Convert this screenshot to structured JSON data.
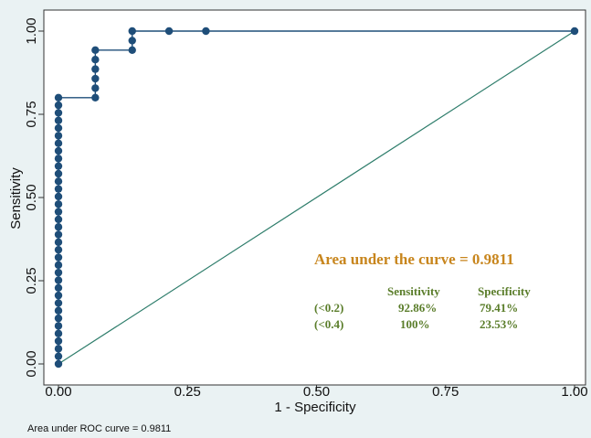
{
  "chart_data": {
    "type": "line",
    "title": "",
    "xlabel": "1 - Specificity",
    "ylabel": "Sensitivity",
    "xlim": [
      0,
      1
    ],
    "ylim": [
      0,
      1
    ],
    "x_ticks": [
      "0.00",
      "0.25",
      "0.50",
      "0.75",
      "1.00"
    ],
    "y_ticks": [
      "0.00",
      "0.25",
      "0.50",
      "0.75",
      "1.00"
    ],
    "grid": false,
    "legend": "none",
    "colors": {
      "roc": "#1f4e79",
      "reference": "#2e7d6b",
      "annotation_title": "#c8861e",
      "annotation_text": "#5a7d2a"
    },
    "series": [
      {
        "x": [
          0,
          0,
          0,
          0,
          0,
          0,
          0,
          0,
          0,
          0,
          0,
          0,
          0,
          0,
          0,
          0,
          0,
          0,
          0,
          0,
          0,
          0,
          0,
          0,
          0,
          0,
          0,
          0,
          0,
          0,
          0,
          0,
          0,
          0,
          0,
          0,
          0.0714,
          0.0714,
          0.0714,
          0.0714,
          0.0714,
          0.0714,
          0.1429,
          0.1429,
          0.1429,
          0.2143,
          0.2857,
          1.0
        ],
        "y": [
          0,
          0.0229,
          0.0457,
          0.0686,
          0.0914,
          0.1143,
          0.1371,
          0.16,
          0.1829,
          0.2057,
          0.2286,
          0.2514,
          0.2743,
          0.2971,
          0.32,
          0.3429,
          0.3657,
          0.3886,
          0.4114,
          0.4343,
          0.4571,
          0.48,
          0.5029,
          0.5257,
          0.5486,
          0.5714,
          0.5943,
          0.6171,
          0.64,
          0.6629,
          0.6857,
          0.7086,
          0.7314,
          0.7543,
          0.7771,
          0.8,
          0.8,
          0.8286,
          0.8571,
          0.8857,
          0.9143,
          0.9429,
          0.9429,
          0.9714,
          1.0,
          1.0,
          1.0,
          1.0
        ]
      },
      {
        "x": [
          0,
          1
        ],
        "y": [
          0,
          1
        ]
      }
    ],
    "annotations": {
      "auc_title": "Area under the curve = 0.9811",
      "col_sensitivity": "Sensitivity",
      "col_specificity": "Specificity",
      "rows": [
        {
          "cutoff": "(<0.2)",
          "sensitivity": "92.86%",
          "specificity": "79.41%"
        },
        {
          "cutoff": "(<0.4)",
          "sensitivity": "100%",
          "specificity": "23.53%"
        }
      ]
    },
    "footnote": "Area under ROC curve = 0.9811"
  }
}
